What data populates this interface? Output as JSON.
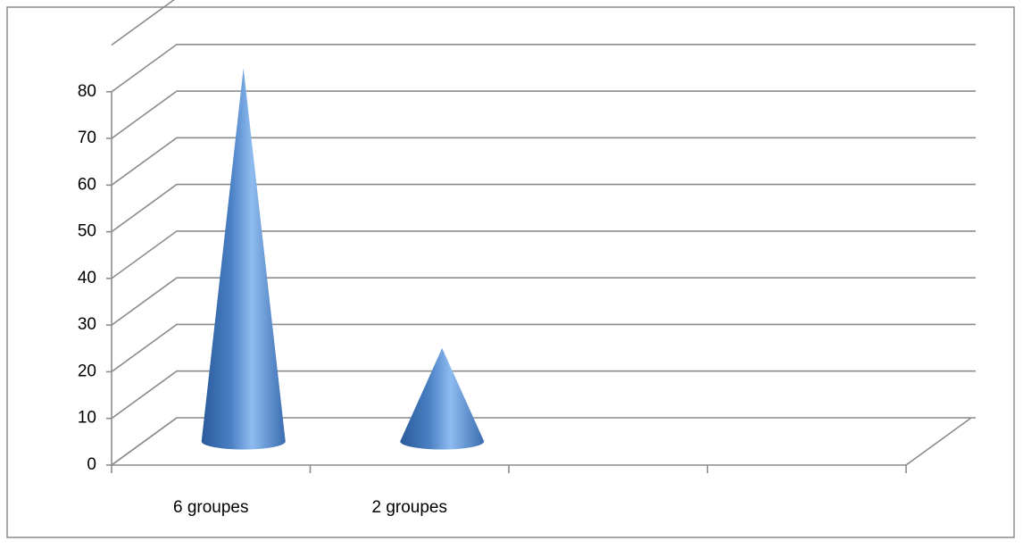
{
  "chart_data": {
    "type": "cone3d",
    "categories": [
      "6 groupes",
      "2 groupes",
      null,
      null
    ],
    "values": [
      80,
      20,
      null,
      null
    ],
    "color": "#4f81bd",
    "ylim": [
      0,
      90
    ],
    "yticks": [
      0,
      10,
      20,
      30,
      40,
      50,
      60,
      70,
      80
    ],
    "grid": true
  }
}
